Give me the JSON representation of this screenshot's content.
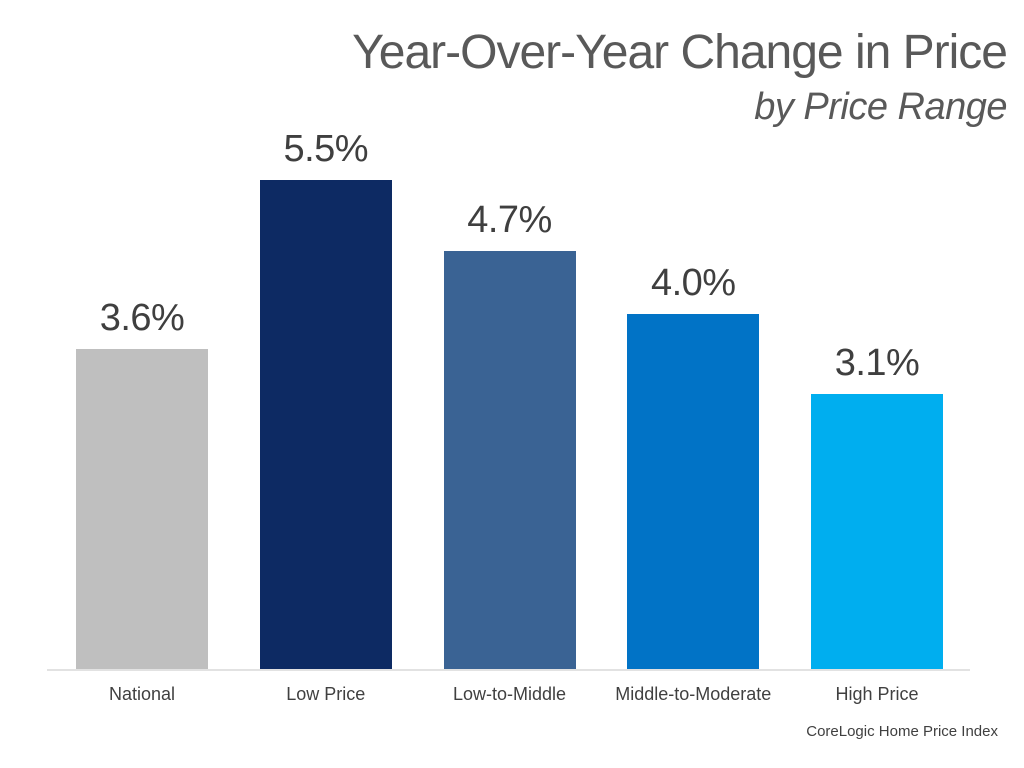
{
  "header": {
    "title": "Year-Over-Year Change in Price",
    "subtitle": "by Price Range"
  },
  "footer": {
    "source": "CoreLogic Home Price Index"
  },
  "colors": {
    "title_text": "#595959",
    "value_label_text": "#3f3f3f",
    "axis_label_text": "#404040",
    "axis_line": "#e2e2e2",
    "bar_national": "#bfbfbf",
    "bar_low_price": "#0d2a63",
    "bar_low_to_middle": "#3a6394",
    "bar_middle_to_moderate": "#0173c6",
    "bar_high_price": "#00aeef"
  },
  "chart_data": {
    "type": "bar",
    "title": "Year-Over-Year Change in Price",
    "subtitle": "by Price Range",
    "categories": [
      "National",
      "Low Price",
      "Low-to-Middle",
      "Middle-to-Moderate",
      "High Price"
    ],
    "values": [
      3.6,
      5.5,
      4.7,
      4.0,
      3.1
    ],
    "value_labels": [
      "3.6%",
      "5.5%",
      "4.7%",
      "4.0%",
      "3.1%"
    ],
    "bar_colors": [
      "#bfbfbf",
      "#0d2a63",
      "#3a6394",
      "#0173c6",
      "#00aeef"
    ],
    "xlabel": "",
    "ylabel": "",
    "ylim": [
      0,
      6
    ],
    "grid": false,
    "legend": false,
    "y_axis_visible": false,
    "data_labels_position": "above-bars",
    "source": "CoreLogic Home Price Index"
  }
}
